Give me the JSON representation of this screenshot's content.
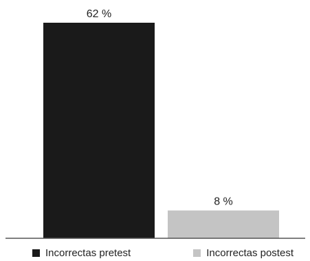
{
  "chart_data": {
    "type": "bar",
    "categories": [
      "Incorrectas pretest",
      "Incorrectas postest"
    ],
    "values": [
      62,
      8
    ],
    "data_labels": [
      "62 %",
      "8 %"
    ],
    "colors": [
      "#1a1a1a",
      "#c4c4c4"
    ],
    "ylim": [
      0,
      62
    ],
    "grid": false,
    "legend": {
      "placement": "bottom",
      "entries": [
        "Incorrectas pretest",
        "Incorrectas postest"
      ]
    }
  }
}
